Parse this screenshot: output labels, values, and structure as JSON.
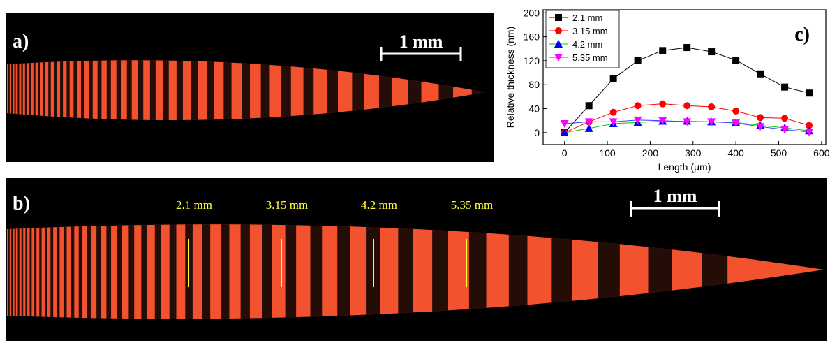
{
  "images": {
    "a": {
      "label": "a)",
      "scale_bar": "1 mm"
    },
    "b": {
      "label": "b)",
      "scale_bar": "1 mm",
      "markers": [
        "2.1 mm",
        "3.15 mm",
        "4.2 mm",
        "5.35 mm"
      ]
    }
  },
  "chart_data": {
    "type": "line",
    "panel_label": "c)",
    "x_label": "Length (μm)",
    "y_label": "Relative thickness (nm)",
    "x": [
      0,
      57,
      114,
      171,
      229,
      286,
      343,
      400,
      457,
      514,
      571
    ],
    "series": [
      {
        "name": "2.1 mm",
        "color": "#000000",
        "line_color": "#000000",
        "marker": "square",
        "values": [
          0,
          45,
          90,
          120,
          137,
          142,
          135,
          121,
          98,
          76,
          66
        ]
      },
      {
        "name": "3.15 mm",
        "color": "#ff0000",
        "line_color": "#ff0000",
        "marker": "circle",
        "values": [
          0,
          18,
          34,
          45,
          48,
          45,
          43,
          36,
          25,
          24,
          12
        ]
      },
      {
        "name": "4.2 mm",
        "color": "#0000ff",
        "line_color": "#00cc00",
        "marker": "triangle-up",
        "values": [
          0,
          7,
          15,
          17,
          19,
          19,
          18,
          17,
          12,
          8,
          3
        ]
      },
      {
        "name": "5.35 mm",
        "color": "#ff00ff",
        "line_color": "#4040ff",
        "marker": "triangle-down",
        "values": [
          15,
          18,
          18,
          21,
          20,
          18,
          18,
          16,
          10,
          5,
          1
        ]
      }
    ],
    "xlim": [
      -50,
      610
    ],
    "ylim": [
      -20,
      205
    ],
    "xticks": [
      0,
      100,
      200,
      300,
      400,
      500,
      600
    ],
    "yticks": [
      0,
      40,
      80,
      120,
      160,
      200
    ],
    "legend": "top-left"
  }
}
